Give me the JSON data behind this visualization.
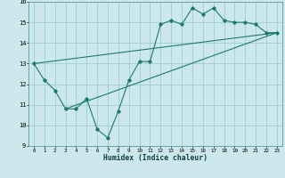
{
  "xlabel": "Humidex (Indice chaleur)",
  "ylabel": "",
  "bg_color": "#cce8ec",
  "grid_color": "#9fcdd4",
  "line_color": "#1a7a6e",
  "xlim": [
    -0.5,
    23.5
  ],
  "ylim": [
    9,
    16
  ],
  "xticks": [
    0,
    1,
    2,
    3,
    4,
    5,
    6,
    7,
    8,
    9,
    10,
    11,
    12,
    13,
    14,
    15,
    16,
    17,
    18,
    19,
    20,
    21,
    22,
    23
  ],
  "yticks": [
    9,
    10,
    11,
    12,
    13,
    14,
    15,
    16
  ],
  "main_x": [
    0,
    1,
    2,
    3,
    4,
    5,
    6,
    7,
    8,
    9,
    10,
    11,
    12,
    13,
    14,
    15,
    16,
    17,
    18,
    19,
    20,
    21,
    22,
    23
  ],
  "main_y": [
    13.0,
    12.2,
    11.7,
    10.8,
    10.8,
    11.3,
    9.8,
    9.4,
    10.7,
    12.2,
    13.1,
    13.1,
    14.9,
    15.1,
    14.9,
    15.7,
    15.4,
    15.7,
    15.1,
    15.0,
    15.0,
    14.9,
    14.5,
    14.5
  ],
  "line1_x": [
    0,
    23
  ],
  "line1_y": [
    13.0,
    14.5
  ],
  "line2_x": [
    3,
    23
  ],
  "line2_y": [
    10.8,
    14.5
  ]
}
